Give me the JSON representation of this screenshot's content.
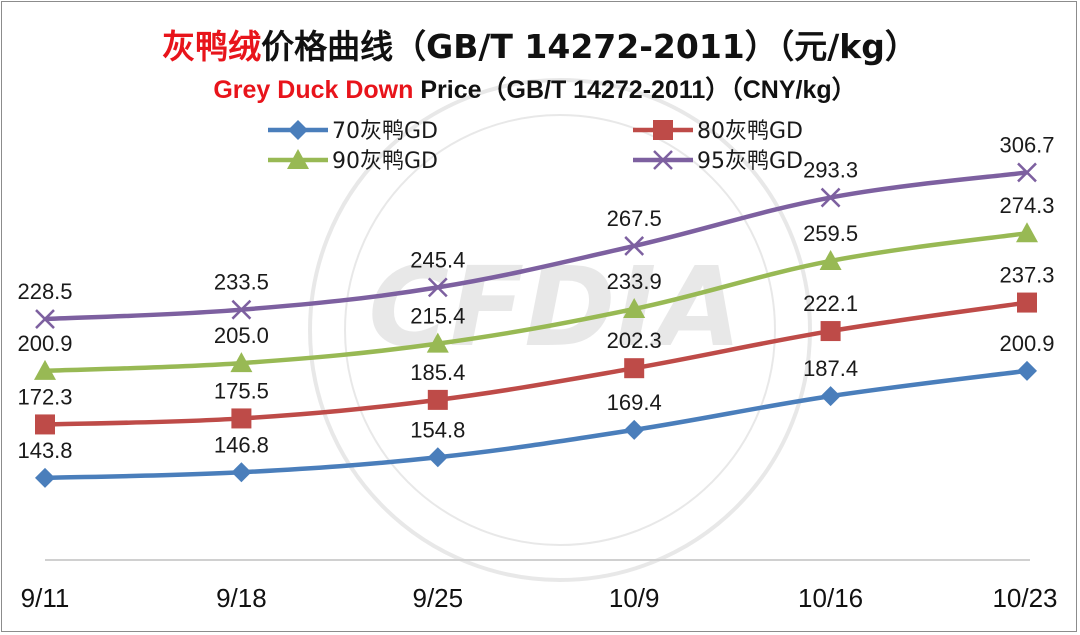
{
  "chart_data": {
    "type": "line",
    "title_part1": "灰鸭绒",
    "title_part2": "价格曲线（GB/T 14272-2011）（元/kg）",
    "subtitle_part1": "Grey Duck Down",
    "subtitle_part2": " Price（GB/T 14272-2011）（CNY/kg）",
    "xlabel": "",
    "ylabel": "",
    "ylim": [
      100,
      340
    ],
    "categories": [
      "9/11",
      "9/18",
      "9/25",
      "10/9",
      "10/16",
      "10/23"
    ],
    "series": [
      {
        "name": "70灰鸭GD",
        "color": "#4a7ebb",
        "marker": "diamond",
        "values": [
          143.8,
          146.8,
          154.8,
          169.4,
          187.4,
          200.9
        ]
      },
      {
        "name": "80灰鸭GD",
        "color": "#be4b48",
        "marker": "square",
        "values": [
          172.3,
          175.5,
          185.4,
          202.3,
          222.1,
          237.3
        ]
      },
      {
        "name": "90灰鸭GD",
        "color": "#98b954",
        "marker": "triangle",
        "values": [
          200.9,
          205.0,
          215.4,
          233.9,
          259.5,
          274.3
        ]
      },
      {
        "name": "95灰鸭GD",
        "color": "#7d60a0",
        "marker": "x",
        "values": [
          228.5,
          233.5,
          245.4,
          267.5,
          293.3,
          306.7
        ]
      }
    ],
    "legend_position": "top",
    "grid": false,
    "watermark_text": "CFDIA"
  }
}
